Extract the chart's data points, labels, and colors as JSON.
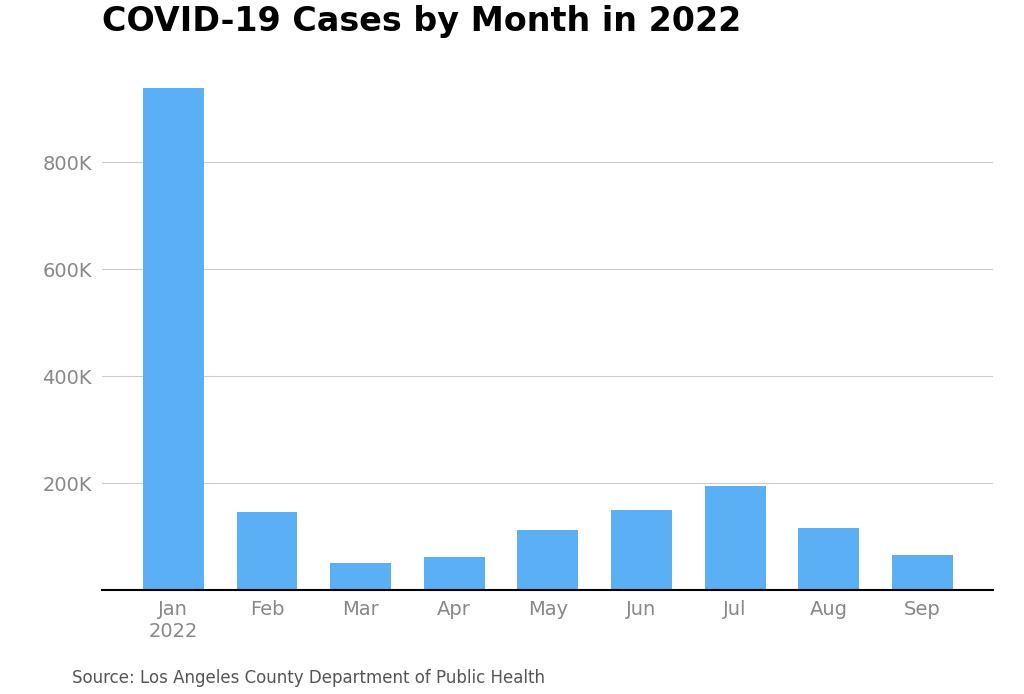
{
  "title": "COVID-19 Cases by Month in 2022",
  "categories": [
    "Jan\n2022",
    "Feb",
    "Mar",
    "Apr",
    "May",
    "Jun",
    "Jul",
    "Aug",
    "Sep"
  ],
  "values": [
    940000,
    145000,
    50000,
    62000,
    112000,
    150000,
    195000,
    115000,
    65000
  ],
  "bar_color": "#5aaff5",
  "background_color": "#ffffff",
  "grid_color": "#cccccc",
  "ylim": [
    0,
    1000000
  ],
  "yticks": [
    200000,
    400000,
    600000,
    800000
  ],
  "title_fontsize": 24,
  "tick_fontsize": 14,
  "tick_color": "#888888",
  "source_text": "Source: Los Angeles County Department of Public Health",
  "source_fontsize": 12
}
